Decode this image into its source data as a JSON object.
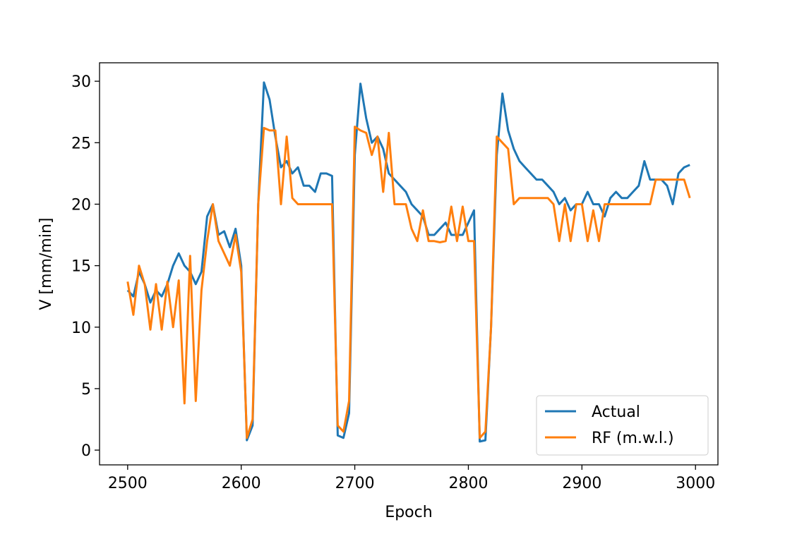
{
  "chart_data": {
    "type": "line",
    "xlabel": "Epoch",
    "ylabel": "V [mm/min]",
    "xlim": [
      2475.25,
      3019.75
    ],
    "ylim": [
      -1.2,
      31.5
    ],
    "xticks": [
      2500,
      2600,
      2700,
      2800,
      2900,
      3000
    ],
    "yticks": [
      0,
      5,
      10,
      15,
      20,
      25,
      30
    ],
    "legend": "lower right",
    "x": [
      2500,
      2505,
      2510,
      2515,
      2520,
      2525,
      2530,
      2535,
      2540,
      2545,
      2550,
      2555,
      2560,
      2565,
      2570,
      2575,
      2580,
      2585,
      2590,
      2595,
      2600,
      2605,
      2610,
      2615,
      2620,
      2625,
      2630,
      2635,
      2640,
      2645,
      2650,
      2655,
      2660,
      2665,
      2670,
      2675,
      2680,
      2685,
      2690,
      2695,
      2700,
      2705,
      2710,
      2715,
      2720,
      2725,
      2730,
      2735,
      2740,
      2745,
      2750,
      2755,
      2760,
      2765,
      2770,
      2775,
      2780,
      2785,
      2790,
      2795,
      2800,
      2805,
      2810,
      2815,
      2820,
      2825,
      2830,
      2835,
      2840,
      2845,
      2850,
      2855,
      2860,
      2865,
      2870,
      2875,
      2880,
      2885,
      2890,
      2895,
      2900,
      2905,
      2910,
      2915,
      2920,
      2925,
      2930,
      2935,
      2940,
      2945,
      2950,
      2955,
      2960,
      2965,
      2970,
      2975,
      2980,
      2985,
      2990,
      2995
    ],
    "series": [
      {
        "name": "Actual",
        "color": "#1f77b4",
        "values": [
          13.0,
          12.5,
          14.5,
          13.5,
          12.0,
          13.0,
          12.5,
          13.5,
          15.0,
          16.0,
          15.0,
          14.5,
          13.5,
          14.5,
          19.0,
          20.0,
          17.5,
          17.8,
          16.5,
          18.0,
          15.0,
          0.8,
          2.0,
          20.0,
          29.9,
          28.5,
          25.5,
          23.0,
          23.5,
          22.5,
          23.0,
          21.5,
          21.5,
          21.0,
          22.5,
          22.5,
          22.3,
          1.2,
          1.0,
          3.0,
          24.0,
          29.8,
          27.0,
          25.0,
          25.5,
          24.5,
          22.5,
          22.0,
          21.5,
          21.0,
          20.0,
          19.5,
          19.0,
          17.5,
          17.5,
          18.0,
          18.5,
          17.5,
          17.5,
          17.5,
          18.5,
          19.5,
          0.7,
          0.8,
          10.0,
          24.0,
          29.0,
          26.0,
          24.5,
          23.5,
          23.0,
          22.5,
          22.0,
          22.0,
          21.5,
          21.0,
          20.0,
          20.5,
          19.5,
          20.0,
          20.0,
          21.0,
          20.0,
          20.0,
          19.0,
          20.5,
          21.0,
          20.5,
          20.5,
          21.0,
          21.5,
          23.5,
          22.0,
          22.0,
          22.0,
          21.5,
          20.0,
          22.5,
          23.0,
          23.2
        ]
      },
      {
        "name": "RF (m.w.l.)",
        "color": "#ff7f0e",
        "values": [
          13.7,
          11.0,
          15.0,
          13.5,
          9.8,
          13.5,
          9.8,
          13.7,
          10.0,
          13.8,
          3.8,
          15.8,
          4.0,
          13.0,
          17.0,
          20.0,
          17.0,
          16.0,
          15.0,
          17.5,
          14.5,
          1.0,
          2.5,
          20.0,
          26.2,
          26.0,
          26.0,
          20.0,
          25.5,
          20.5,
          20.0,
          20.0,
          20.0,
          20.0,
          20.0,
          20.0,
          20.0,
          2.0,
          1.5,
          4.0,
          26.3,
          26.0,
          25.8,
          24.0,
          25.5,
          21.0,
          25.8,
          20.0,
          20.0,
          20.0,
          18.0,
          17.0,
          19.5,
          17.0,
          17.0,
          16.9,
          17.0,
          19.8,
          17.0,
          19.8,
          17.0,
          17.0,
          1.0,
          1.5,
          10.0,
          25.5,
          25.0,
          24.5,
          20.0,
          20.5,
          20.5,
          20.5,
          20.5,
          20.5,
          20.5,
          20.0,
          17.0,
          20.0,
          17.0,
          20.0,
          20.0,
          17.0,
          19.5,
          17.0,
          20.0,
          20.0,
          20.0,
          20.0,
          20.0,
          20.0,
          20.0,
          20.0,
          20.0,
          22.0,
          22.0,
          22.0,
          22.0,
          22.0,
          22.0,
          20.5
        ]
      }
    ]
  }
}
